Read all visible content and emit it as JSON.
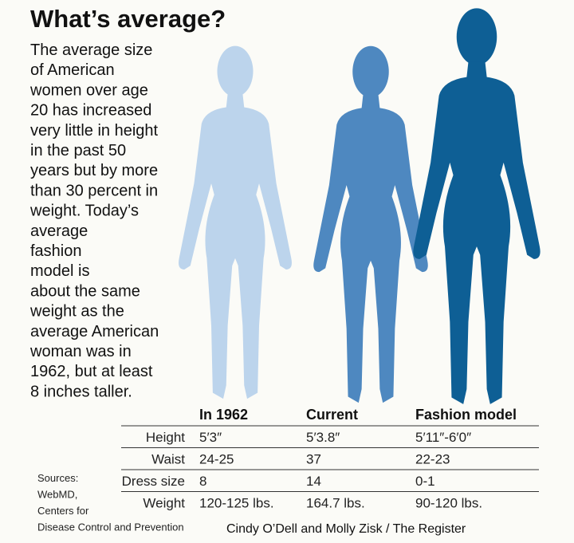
{
  "header": {
    "title": "What’s average?"
  },
  "intro": {
    "lines": [
      "The average size",
      "of American",
      "women over age",
      "20 has increased",
      "very little in height",
      "in the past 50",
      "years but by more",
      "than 30 percent in",
      "weight. Today’s",
      "average",
      "fashion",
      "model is",
      "about the same",
      "weight as the",
      "average American",
      "woman was in",
      "1962, but at least",
      "8 inches taller."
    ]
  },
  "table": {
    "columns": [
      "In 1962",
      "Current",
      "Fashion model"
    ],
    "rows": [
      [
        "Height",
        "5′3″",
        "5′3.8″",
        "5′11″-6′0″"
      ],
      [
        "Waist",
        "24-25",
        "37",
        "22-23"
      ],
      [
        "Dress size",
        "8",
        "14",
        "0-1"
      ],
      [
        "Weight",
        "120-125 lbs.",
        "164.7 lbs.",
        "90-120 lbs."
      ]
    ]
  },
  "sources": {
    "lines": [
      "Sources:",
      "WebMD,",
      "Centers for",
      "Disease Control and Prevention"
    ]
  },
  "credit": "Cindy O’Dell and Molly Zisk / The Register"
}
